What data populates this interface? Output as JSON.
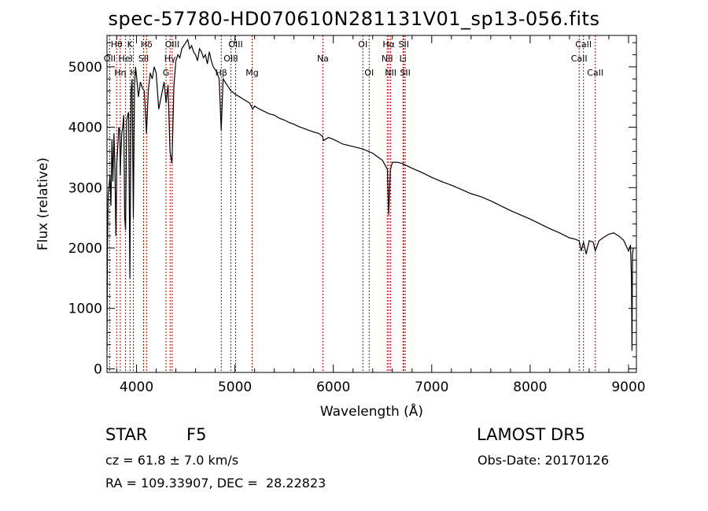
{
  "chart_data": {
    "type": "line",
    "title": "spec-57780-HD070610N281131V01_sp13-056.fits",
    "xlabel": "Wavelength (Å)",
    "ylabel": "Flux (relative)",
    "xlim": [
      3700,
      9080
    ],
    "ylim": [
      -60,
      5520
    ],
    "xticks": [
      4000,
      5000,
      6000,
      7000,
      8000,
      9000
    ],
    "yticks": [
      0,
      1000,
      2000,
      3000,
      4000,
      5000
    ],
    "grid": false,
    "series": [
      {
        "x": [
          3700,
          3705,
          3712,
          3720,
          3730,
          3740,
          3750,
          3760,
          3770,
          3780,
          3790,
          3800,
          3810,
          3820,
          3830,
          3835,
          3840,
          3850,
          3860,
          3870,
          3880,
          3889,
          3900,
          3910,
          3920,
          3933,
          3945,
          3955,
          3968,
          3980,
          3990,
          4000,
          4020,
          4040,
          4060,
          4080,
          4101,
          4120,
          4140,
          4160,
          4180,
          4200,
          4226,
          4250,
          4280,
          4300,
          4320,
          4340,
          4360,
          4380,
          4400,
          4420,
          4440,
          4460,
          4480,
          4500,
          4520,
          4540,
          4560,
          4580,
          4600,
          4620,
          4640,
          4660,
          4680,
          4700,
          4720,
          4740,
          4760,
          4780,
          4800,
          4820,
          4840,
          4861,
          4880,
          4900,
          4920,
          4940,
          4960,
          4980,
          5000,
          5050,
          5100,
          5150,
          5180,
          5200,
          5250,
          5300,
          5350,
          5400,
          5450,
          5500,
          5550,
          5600,
          5650,
          5700,
          5750,
          5800,
          5850,
          5890,
          5900,
          5950,
          6000,
          6100,
          6200,
          6300,
          6400,
          6500,
          6550,
          6563,
          6580,
          6600,
          6650,
          6700,
          6800,
          6900,
          7000,
          7100,
          7200,
          7300,
          7400,
          7500,
          7600,
          7700,
          7800,
          7900,
          8000,
          8100,
          8200,
          8300,
          8400,
          8450,
          8498,
          8520,
          8542,
          8570,
          8600,
          8640,
          8662,
          8700,
          8750,
          8800,
          8850,
          8900,
          8950,
          9000,
          9020,
          9030,
          9035,
          9040,
          9050
        ],
        "values": [
          300,
          2000,
          2900,
          3000,
          3200,
          2700,
          3800,
          3100,
          3900,
          3400,
          2200,
          3400,
          3700,
          4000,
          3950,
          3200,
          3500,
          3900,
          4000,
          4200,
          2500,
          2300,
          4100,
          4200,
          4250,
          1500,
          4600,
          4800,
          2500,
          4700,
          5000,
          4850,
          4500,
          4750,
          4650,
          4600,
          3900,
          4600,
          4900,
          4800,
          5000,
          4900,
          4300,
          4500,
          4750,
          4400,
          4700,
          3600,
          3400,
          4700,
          5100,
          5200,
          5150,
          5300,
          5350,
          5400,
          5450,
          5300,
          5350,
          5250,
          5200,
          5100,
          5300,
          5250,
          5150,
          5200,
          5050,
          5250,
          5100,
          5000,
          4950,
          4900,
          4800,
          3950,
          4800,
          4750,
          4700,
          4650,
          4600,
          4580,
          4550,
          4500,
          4450,
          4400,
          4300,
          4350,
          4300,
          4260,
          4220,
          4200,
          4150,
          4120,
          4080,
          4050,
          4010,
          3980,
          3950,
          3920,
          3900,
          3850,
          3780,
          3830,
          3800,
          3720,
          3680,
          3640,
          3570,
          3450,
          3300,
          2550,
          3300,
          3420,
          3420,
          3400,
          3320,
          3250,
          3170,
          3100,
          3040,
          2970,
          2900,
          2850,
          2780,
          2700,
          2620,
          2550,
          2480,
          2400,
          2320,
          2250,
          2170,
          2150,
          2120,
          1950,
          2100,
          1900,
          2120,
          2100,
          1950,
          2120,
          2180,
          2230,
          2250,
          2200,
          2130,
          1950,
          2050,
          1500,
          300,
          1900,
          2000
        ]
      }
    ],
    "line_markers": [
      {
        "x": 3798,
        "label": "Hθ",
        "row": 0
      },
      {
        "x": 3727,
        "label": "OII",
        "row": 1
      },
      {
        "x": 3889,
        "label": "HeI",
        "row": 1
      },
      {
        "x": 3835,
        "label": "Hη",
        "row": 2
      },
      {
        "x": 3934,
        "label": "K",
        "row": 0
      },
      {
        "x": 3968,
        "label": "H",
        "row": 2
      },
      {
        "x": 4072,
        "label": "SII",
        "row": 1
      },
      {
        "x": 4102,
        "label": "Hδ",
        "row": 0
      },
      {
        "x": 4300,
        "label": "G",
        "row": 2
      },
      {
        "x": 4341,
        "label": "Hγ",
        "row": 1
      },
      {
        "x": 4363,
        "label": "OIII",
        "row": 0
      },
      {
        "x": 4861,
        "label": "Hβ",
        "row": 2
      },
      {
        "x": 4959,
        "label": "OIII",
        "row": 1
      },
      {
        "x": 5007,
        "label": "OIII",
        "row": 0
      },
      {
        "x": 5175,
        "label": "Mg",
        "row": 2
      },
      {
        "x": 5894,
        "label": "Na",
        "row": 1
      },
      {
        "x": 6300,
        "label": "OI",
        "row": 0
      },
      {
        "x": 6364,
        "label": "OI",
        "row": 2
      },
      {
        "x": 6548,
        "label": "NII",
        "row": 1
      },
      {
        "x": 6563,
        "label": "Hα",
        "row": 0
      },
      {
        "x": 6583,
        "label": "NII",
        "row": 2
      },
      {
        "x": 6708,
        "label": "Li",
        "row": 1
      },
      {
        "x": 6716,
        "label": "SII",
        "row": 0
      },
      {
        "x": 6731,
        "label": "SII",
        "row": 2
      },
      {
        "x": 8498,
        "label": "CaII",
        "row": 1
      },
      {
        "x": 8542,
        "label": "CaII",
        "row": 0
      },
      {
        "x": 8662,
        "label": "CaII",
        "row": 2
      }
    ],
    "marker_color": "#b00000"
  },
  "info": {
    "star": "STAR",
    "subclass": "F5",
    "survey": "LAMOST DR5",
    "cz": "cz = 61.8 ± 7.0 km/s",
    "obs_date": "Obs-Date: 20170126",
    "radec": "RA = 109.33907, DEC =  28.22823"
  }
}
